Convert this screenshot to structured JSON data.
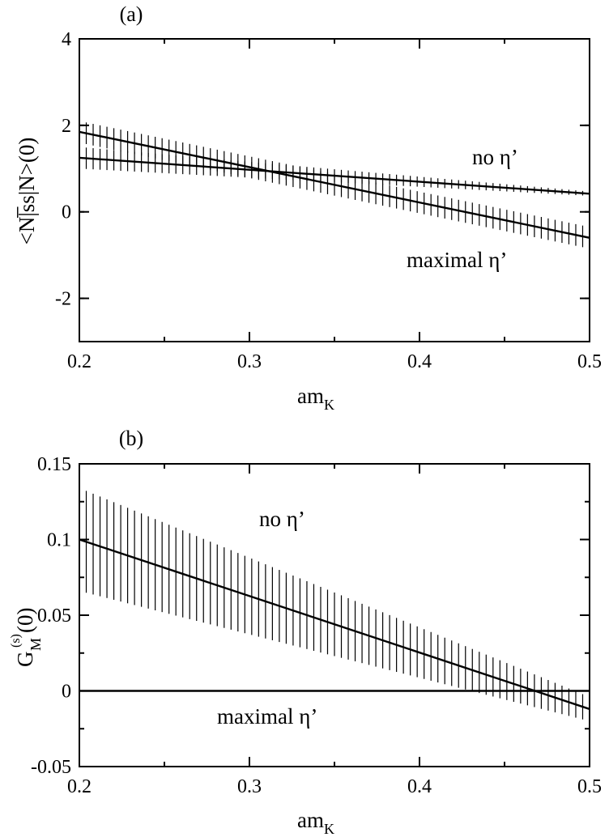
{
  "chart_data": [
    {
      "type": "line",
      "panel_label": "(a)",
      "title": "",
      "xlabel": "am",
      "xlabel_sub": "K",
      "ylabel": "<N|̅ss|N>(0)",
      "xlim": [
        0.2,
        0.5
      ],
      "ylim": [
        -3,
        4
      ],
      "grid": false,
      "xticks": [
        0.2,
        0.3,
        0.4,
        0.5
      ],
      "xtick_labels": [
        "0.2",
        "0.3",
        "0.4",
        "0.5"
      ],
      "yticks": [
        -2,
        0,
        2,
        4
      ],
      "ytick_labels": [
        "-2",
        "0",
        "2",
        "4"
      ],
      "series": [
        {
          "name": "no η’",
          "label_text": "no η’",
          "x": [
            0.2,
            0.5
          ],
          "y": [
            1.25,
            0.42
          ],
          "band_lower": [
            1.0,
            0.37
          ],
          "band_upper": [
            1.5,
            0.47
          ]
        },
        {
          "name": "maximal η’",
          "label_text": "maximal η’",
          "x": [
            0.2,
            0.5
          ],
          "y": [
            1.85,
            -0.6
          ],
          "band_lower": [
            1.6,
            -0.85
          ],
          "band_upper": [
            2.1,
            -0.35
          ]
        }
      ]
    },
    {
      "type": "line",
      "panel_label": "(b)",
      "title": "",
      "xlabel": "am",
      "xlabel_sub": "K",
      "ylabel": "G",
      "ylabel_sub": "M",
      "ylabel_sup": "(s)",
      "ylabel_tail": "(0)",
      "xlim": [
        0.2,
        0.5
      ],
      "ylim": [
        -0.05,
        0.15
      ],
      "grid": false,
      "xticks": [
        0.2,
        0.3,
        0.4,
        0.5
      ],
      "xtick_labels": [
        "0.2",
        "0.3",
        "0.4",
        "0.5"
      ],
      "yticks": [
        -0.05,
        0,
        0.05,
        0.1,
        0.15
      ],
      "ytick_labels": [
        "-0.05",
        "0",
        "0.05",
        "0.1",
        "0.15"
      ],
      "series": [
        {
          "name": "no η’",
          "label_text": "no η’",
          "x": [
            0.2,
            0.5
          ],
          "y": [
            0.1,
            -0.012
          ],
          "band_lower": [
            0.066,
            -0.02
          ],
          "band_upper": [
            0.134,
            -0.004
          ]
        },
        {
          "name": "maximal η’",
          "label_text": "maximal η’",
          "x": [
            0.2,
            0.5
          ],
          "y": [
            0.0,
            0.0
          ],
          "band_lower": null,
          "band_upper": null
        }
      ]
    }
  ]
}
